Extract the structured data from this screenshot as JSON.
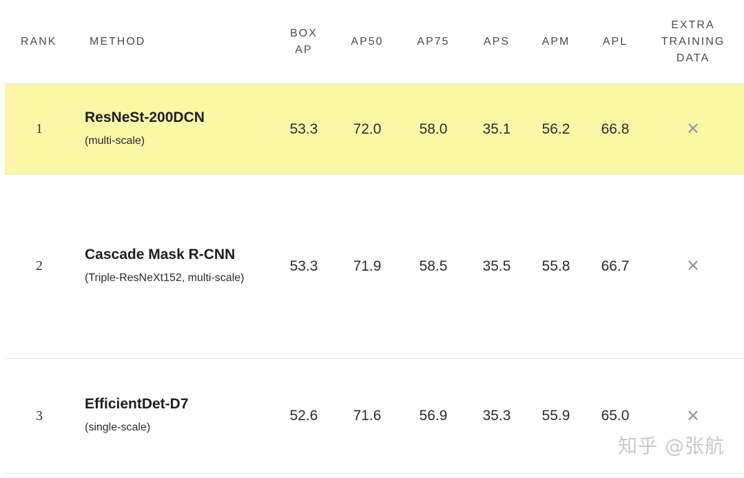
{
  "columns": {
    "rank": "RANK",
    "method": "METHOD",
    "box_ap": "BOX\nAP",
    "ap50": "AP50",
    "ap75": "AP75",
    "aps": "APS",
    "apm": "APM",
    "apl": "APL",
    "extra": "EXTRA\nTRAINING\nDATA"
  },
  "rows": [
    {
      "rank": "1",
      "method_name": "ResNeSt-200DCN",
      "method_desc": "(multi-scale)",
      "box_ap": "53.3",
      "ap50": "72.0",
      "ap75": "58.0",
      "aps": "35.1",
      "apm": "56.2",
      "apl": "66.8",
      "extra": "✕",
      "highlight": true
    },
    {
      "rank": "2",
      "method_name": "Cascade Mask R-CNN",
      "method_desc": "(Triple-ResNeXt152, multi-scale)",
      "box_ap": "53.3",
      "ap50": "71.9",
      "ap75": "58.5",
      "aps": "35.5",
      "apm": "55.8",
      "apl": "66.7",
      "extra": "✕",
      "highlight": false
    },
    {
      "rank": "3",
      "method_name": "EfficientDet-D7",
      "method_desc": "(single-scale)",
      "box_ap": "52.6",
      "ap50": "71.6",
      "ap75": "56.9",
      "aps": "35.3",
      "apm": "55.9",
      "apl": "65.0",
      "extra": "✕",
      "highlight": false
    }
  ],
  "watermark": "知乎 @张航"
}
